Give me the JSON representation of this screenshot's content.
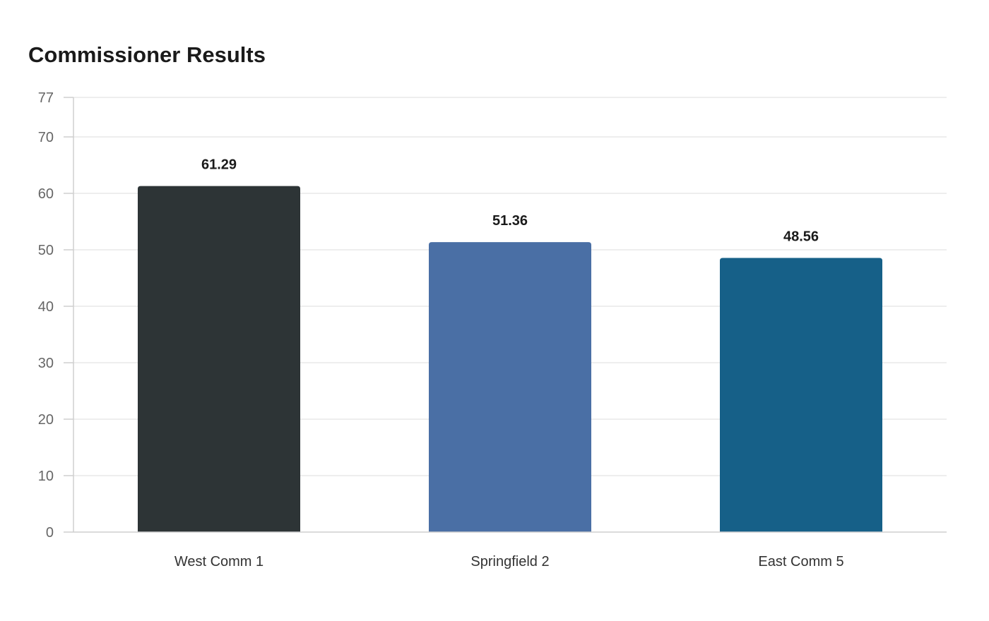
{
  "chart_data": {
    "type": "bar",
    "title": "Commissioner Results",
    "xlabel": "",
    "ylabel": "",
    "categories": [
      "West Comm 1",
      "Springfield 2",
      "East Comm 5"
    ],
    "values": [
      61.29,
      51.36,
      48.56
    ],
    "value_labels": [
      "61.29",
      "51.36",
      "48.56"
    ],
    "colors": [
      "#2d3436",
      "#4a6fa5",
      "#166088"
    ],
    "ylim": [
      0,
      77
    ],
    "yticks": [
      0,
      10,
      20,
      30,
      40,
      50,
      60,
      70,
      77
    ],
    "grid": true,
    "legend": "none"
  }
}
